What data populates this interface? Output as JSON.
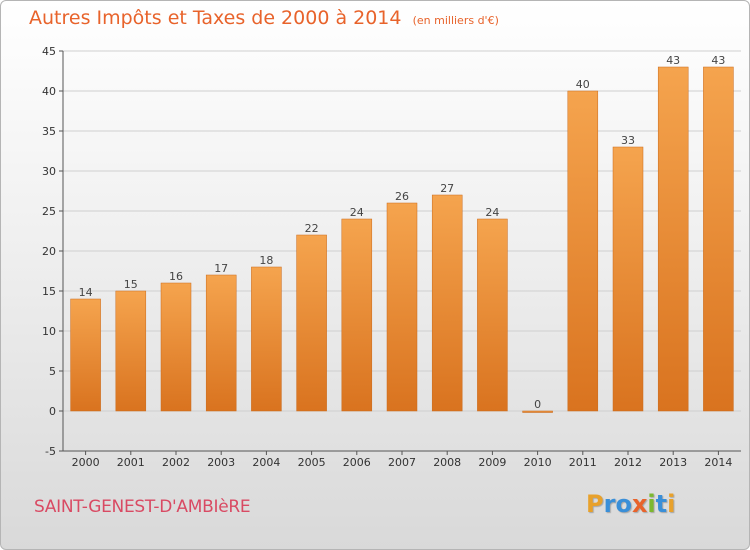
{
  "header": {
    "title": "Autres Impôts et Taxes de 2000 à 2014",
    "unit": "(en milliers d'€)"
  },
  "commune": "SAINT-GENEST-D'AMBIèRE",
  "logo": {
    "text": "Proxiti",
    "letters": [
      "P",
      "r",
      "o",
      "x",
      "i",
      "t",
      "i"
    ]
  },
  "colors": {
    "bar_light": "#f5a44e",
    "bar_dark": "#d9731f",
    "title": "#e8632b",
    "commune": "#d94a63"
  },
  "chart_data": {
    "type": "bar",
    "categories": [
      "2000",
      "2001",
      "2002",
      "2003",
      "2004",
      "2005",
      "2006",
      "2007",
      "2008",
      "2009",
      "2010",
      "2011",
      "2012",
      "2013",
      "2014"
    ],
    "values": [
      14,
      15,
      16,
      17,
      18,
      22,
      24,
      26,
      27,
      24,
      0,
      40,
      33,
      43,
      43
    ],
    "value_labels": [
      "14",
      "15",
      "16",
      "17",
      "18",
      "22",
      "24",
      "26",
      "27",
      "24",
      "0",
      "40",
      "33",
      "43",
      "43"
    ],
    "title": "Autres Impôts et Taxes de 2000 à 2014",
    "xlabel": "",
    "ylabel": "",
    "ylim": [
      -5,
      45
    ],
    "yticks": [
      -5,
      0,
      5,
      10,
      15,
      20,
      25,
      30,
      35,
      40,
      45
    ],
    "grid": true,
    "legend": "none"
  }
}
